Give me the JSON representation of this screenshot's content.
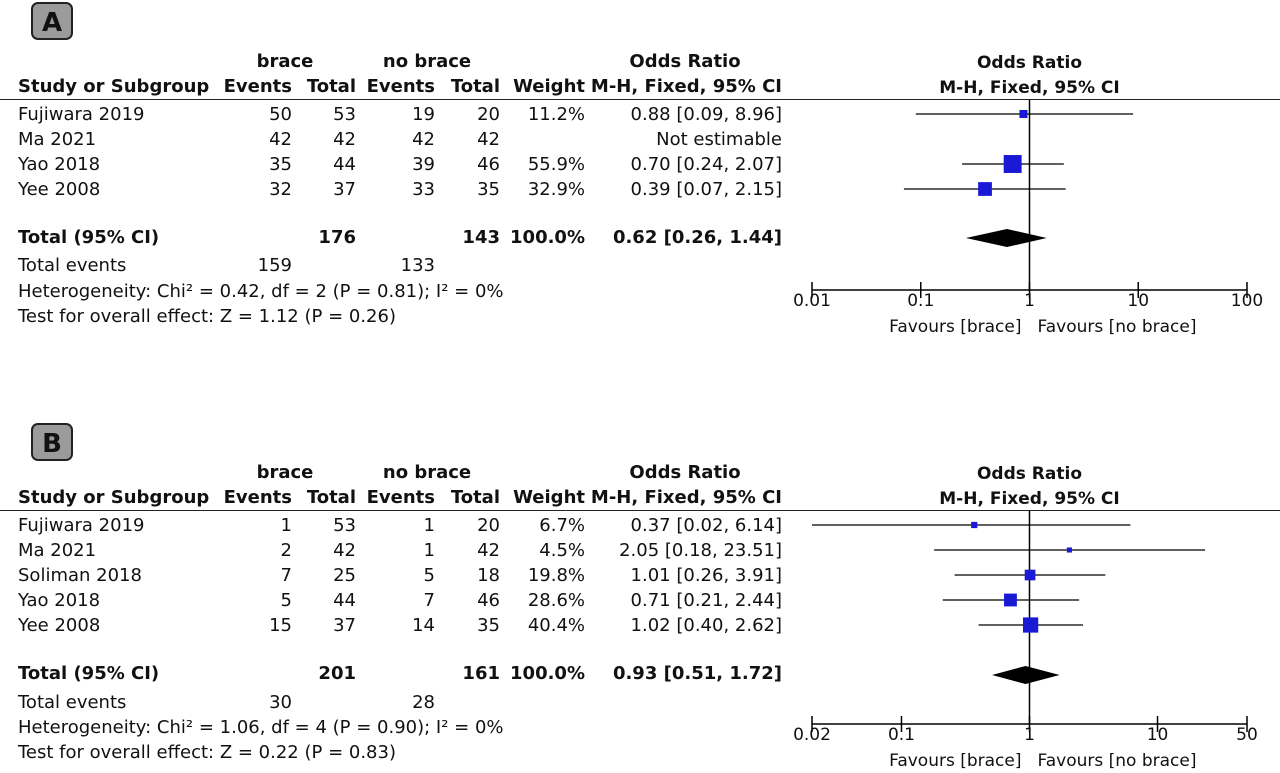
{
  "chart_data": [
    {
      "type": "forest",
      "panel_label": "A",
      "group_headers": {
        "experimental": "brace",
        "control": "no brace"
      },
      "columns": {
        "study": "Study or Subgroup",
        "events": "Events",
        "total": "Total",
        "weight": "Weight",
        "or_header": "Odds Ratio",
        "or_method": "M-H, Fixed, 95% CI"
      },
      "plot_header": {
        "title": "Odds Ratio",
        "method": "M-H, Fixed, 95% CI"
      },
      "studies": [
        {
          "name": "Fujiwara 2019",
          "e_events": "50",
          "e_total": "53",
          "c_events": "19",
          "c_total": "20",
          "weight": "11.2%",
          "ci_text": "0.88 [0.09, 8.96]",
          "or": 0.88,
          "lo": 0.09,
          "hi": 8.96,
          "w": 11.2
        },
        {
          "name": "Ma 2021",
          "e_events": "42",
          "e_total": "42",
          "c_events": "42",
          "c_total": "42",
          "weight": "",
          "ci_text": "Not estimable",
          "or": null,
          "lo": null,
          "hi": null,
          "w": 0
        },
        {
          "name": "Yao 2018",
          "e_events": "35",
          "e_total": "44",
          "c_events": "39",
          "c_total": "46",
          "weight": "55.9%",
          "ci_text": "0.70 [0.24, 2.07]",
          "or": 0.7,
          "lo": 0.24,
          "hi": 2.07,
          "w": 55.9
        },
        {
          "name": "Yee 2008",
          "e_events": "32",
          "e_total": "37",
          "c_events": "33",
          "c_total": "35",
          "weight": "32.9%",
          "ci_text": "0.39 [0.07, 2.15]",
          "or": 0.39,
          "lo": 0.07,
          "hi": 2.15,
          "w": 32.9
        }
      ],
      "total": {
        "label": "Total (95% CI)",
        "e_total": "176",
        "c_total": "143",
        "weight": "100.0%",
        "ci_text": "0.62 [0.26, 1.44]",
        "or": 0.62,
        "lo": 0.26,
        "hi": 1.44
      },
      "total_events": {
        "label": "Total events",
        "e": "159",
        "c": "133"
      },
      "heterogeneity": "Heterogeneity: Chi² = 0.42, df = 2 (P = 0.81); I² = 0%",
      "overall_effect": "Test for overall effect: Z = 1.12 (P = 0.26)",
      "axis": {
        "scale": "log",
        "ticks": [
          0.01,
          0.1,
          1,
          10,
          100
        ],
        "tick_labels": [
          "0.01",
          "0.1",
          "1",
          "10",
          "100"
        ],
        "range": [
          0.01,
          100
        ]
      },
      "favours": {
        "left": "Favours [brace]",
        "right": "Favours [no brace]"
      }
    },
    {
      "type": "forest",
      "panel_label": "B",
      "group_headers": {
        "experimental": "brace",
        "control": "no brace"
      },
      "columns": {
        "study": "Study or Subgroup",
        "events": "Events",
        "total": "Total",
        "weight": "Weight",
        "or_header": "Odds Ratio",
        "or_method": "M-H, Fixed, 95% CI"
      },
      "plot_header": {
        "title": "Odds Ratio",
        "method": "M-H, Fixed, 95% CI"
      },
      "studies": [
        {
          "name": "Fujiwara 2019",
          "e_events": "1",
          "e_total": "53",
          "c_events": "1",
          "c_total": "20",
          "weight": "6.7%",
          "ci_text": "0.37 [0.02, 6.14]",
          "or": 0.37,
          "lo": 0.02,
          "hi": 6.14,
          "w": 6.7
        },
        {
          "name": "Ma 2021",
          "e_events": "2",
          "e_total": "42",
          "c_events": "1",
          "c_total": "42",
          "weight": "4.5%",
          "ci_text": "2.05 [0.18, 23.51]",
          "or": 2.05,
          "lo": 0.18,
          "hi": 23.51,
          "w": 4.5
        },
        {
          "name": "Soliman 2018",
          "e_events": "7",
          "e_total": "25",
          "c_events": "5",
          "c_total": "18",
          "weight": "19.8%",
          "ci_text": "1.01 [0.26, 3.91]",
          "or": 1.01,
          "lo": 0.26,
          "hi": 3.91,
          "w": 19.8
        },
        {
          "name": "Yao 2018",
          "e_events": "5",
          "e_total": "44",
          "c_events": "7",
          "c_total": "46",
          "weight": "28.6%",
          "ci_text": "0.71 [0.21, 2.44]",
          "or": 0.71,
          "lo": 0.21,
          "hi": 2.44,
          "w": 28.6
        },
        {
          "name": "Yee 2008",
          "e_events": "15",
          "e_total": "37",
          "c_events": "14",
          "c_total": "35",
          "weight": "40.4%",
          "ci_text": "1.02 [0.40, 2.62]",
          "or": 1.02,
          "lo": 0.4,
          "hi": 2.62,
          "w": 40.4
        }
      ],
      "total": {
        "label": "Total (95% CI)",
        "e_total": "201",
        "c_total": "161",
        "weight": "100.0%",
        "ci_text": "0.93 [0.51, 1.72]",
        "or": 0.93,
        "lo": 0.51,
        "hi": 1.72
      },
      "total_events": {
        "label": "Total events",
        "e": "30",
        "c": "28"
      },
      "heterogeneity": "Heterogeneity: Chi² = 1.06, df = 4 (P = 0.90); I² = 0%",
      "overall_effect": "Test for overall effect: Z = 0.22 (P = 0.83)",
      "axis": {
        "scale": "log",
        "ticks": [
          0.02,
          0.1,
          1,
          10,
          50
        ],
        "tick_labels": [
          "0.02",
          "0.1",
          "1",
          "10",
          "50"
        ],
        "range": [
          0.02,
          50
        ]
      },
      "favours": {
        "left": "Favours [brace]",
        "right": "Favours [no brace]"
      }
    }
  ],
  "colors": {
    "marker": "#1a1ad6",
    "diamond": "#000000",
    "badge": "#9b9b9b"
  }
}
